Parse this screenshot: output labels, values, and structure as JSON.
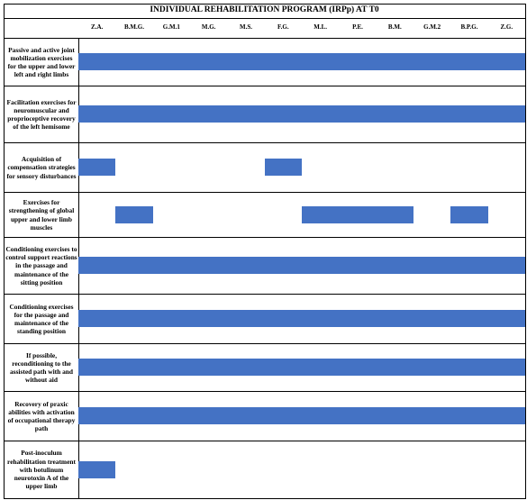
{
  "title": "INDIVIDUAL REHABILITATION PROGRAM (IRPp) AT T0",
  "columns": [
    "Z.A.",
    "B.M.G.",
    "G.M.1",
    "M.G.",
    "M.S.",
    "F.G.",
    "M.L.",
    "P.E.",
    "B.M.",
    "G.M.2",
    "B.P.G.",
    "Z.G."
  ],
  "rows": [
    {
      "label": "Passive and active joint mobilization exercises for the upper and lower left and right limbs",
      "spans": [
        [
          0,
          11
        ]
      ]
    },
    {
      "label": "Facilitation exercises for neuromuscular and proprioceptive recovery of the left hemisome",
      "spans": [
        [
          0,
          11
        ]
      ]
    },
    {
      "label": "Acquisition of compensation strategies for sensory disturbances",
      "spans": [
        [
          0,
          0
        ],
        [
          5,
          5
        ]
      ]
    },
    {
      "label": "Exercises for strengthening of global upper and lower limb muscles",
      "spans": [
        [
          1,
          1
        ],
        [
          6,
          8
        ],
        [
          10,
          10
        ]
      ]
    },
    {
      "label": "Conditioning exercises to control support reactions in the passage and maintenance of the sitting position",
      "spans": [
        [
          0,
          11
        ]
      ]
    },
    {
      "label": "Conditioning exercises for the passage and maintenance of the standing position",
      "spans": [
        [
          0,
          11
        ]
      ]
    },
    {
      "label": "If possible, reconditioning to the assisted path with and without aid",
      "spans": [
        [
          0,
          11
        ]
      ]
    },
    {
      "label": "Recovery of praxic abilities with activation of occupational therapy path",
      "spans": [
        [
          0,
          11
        ]
      ]
    },
    {
      "label": "Post-inoculum rehabilitation treatment with botulinum neurotoxin A of the upper limb",
      "spans": [
        [
          0,
          0
        ]
      ]
    }
  ]
}
